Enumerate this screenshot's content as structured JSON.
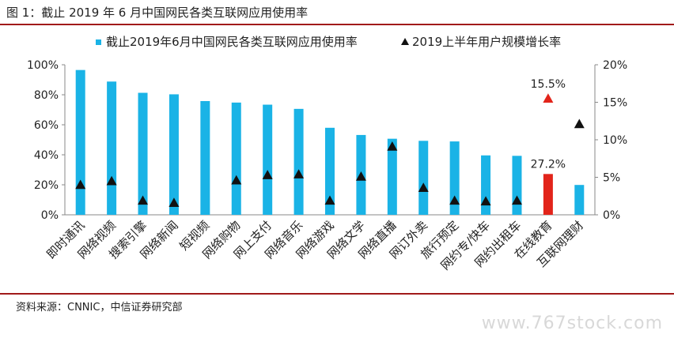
{
  "header": {
    "title": "图 1：截止 2019 年 6 月中国网民各类互联网应用使用率"
  },
  "footer": {
    "source": "资料来源：CNNIC，中信证券研究部",
    "watermark": "www.767stock.com"
  },
  "colors": {
    "bar": "#1ab3e6",
    "bar_highlight": "#e2241a",
    "marker": "#111111",
    "marker_highlight": "#e2241a",
    "rule": "#a11a1a"
  },
  "chart_data": {
    "type": "bar",
    "title": "",
    "categories": [
      "即时通讯",
      "网络视频",
      "搜索引擎",
      "网络新闻",
      "短视频",
      "网络购物",
      "网上支付",
      "网络音乐",
      "网络游戏",
      "网络文学",
      "网络直播",
      "网订外卖",
      "旅行预定",
      "网约专/快车",
      "网约出租车",
      "在线教育",
      "互联网理财"
    ],
    "series": [
      {
        "name": "截止2019年6月中国网民各类互联网应用使用率",
        "type": "bar",
        "axis": "left",
        "values": [
          96.5,
          88.8,
          81.3,
          80.3,
          75.8,
          74.8,
          73.4,
          70.6,
          58.0,
          53.2,
          50.7,
          49.3,
          48.9,
          39.6,
          39.3,
          27.2,
          19.9
        ],
        "highlight_index": 15
      },
      {
        "name": "2019上半年用户规模增长率",
        "type": "scatter",
        "marker": "triangle",
        "axis": "right",
        "values": [
          4.0,
          4.5,
          1.9,
          1.6,
          null,
          4.6,
          5.3,
          5.4,
          1.9,
          5.1,
          9.1,
          3.6,
          1.9,
          1.8,
          1.9,
          15.5,
          12.1
        ],
        "highlight_index": 15
      }
    ],
    "data_labels": [
      {
        "series": 0,
        "index": 15,
        "text": "27.2%"
      },
      {
        "series": 1,
        "index": 15,
        "text": "15.5%"
      }
    ],
    "y_left": {
      "min": 0,
      "max": 100,
      "ticks": [
        "0%",
        "20%",
        "40%",
        "60%",
        "80%",
        "100%"
      ]
    },
    "y_right": {
      "min": 0,
      "max": 20,
      "ticks": [
        "0%",
        "5%",
        "10%",
        "15%",
        "20%"
      ]
    },
    "xlabel": "",
    "ylabel": "",
    "grid": false,
    "legend": "top"
  }
}
